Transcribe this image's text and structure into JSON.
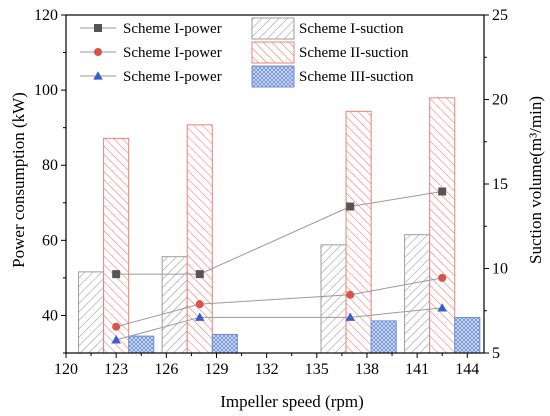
{
  "chart_data": {
    "type": "bar",
    "xlabel": "Impeller speed (rpm)",
    "ylabel_left": "Power consumption (kW)",
    "ylabel_right": "Suction volume(m³/min)",
    "xlim": [
      120,
      145
    ],
    "x_ticks": [
      120,
      123,
      126,
      129,
      132,
      135,
      138,
      141,
      144
    ],
    "ylim_left": [
      30,
      120
    ],
    "y_ticks_left": [
      40,
      60,
      80,
      100,
      120
    ],
    "ylim_right": [
      5,
      25
    ],
    "y_ticks_right": [
      5,
      10,
      15,
      20,
      25
    ],
    "grid": false,
    "legend_placement": "top",
    "power_series": [
      {
        "name": "Scheme I-power",
        "color": "#555555",
        "marker": "square",
        "x": [
          123,
          128,
          137,
          142.5
        ],
        "y": [
          51,
          51,
          69,
          73
        ]
      },
      {
        "name": "Scheme I-power",
        "color": "#d9534a",
        "marker": "circle",
        "x": [
          123,
          128,
          137,
          142.5
        ],
        "y": [
          37,
          43,
          45.5,
          50
        ]
      },
      {
        "name": "Scheme I-power",
        "color": "#3a5fcd",
        "marker": "triangle",
        "x": [
          123,
          128,
          137,
          142.5
        ],
        "y": [
          33.5,
          39.5,
          39.5,
          42
        ]
      }
    ],
    "suction_series": [
      {
        "name": "Scheme I-suction",
        "pattern": "gray-hatch",
        "color": "#9e9e9e",
        "x": [
          121.5,
          126.5,
          136,
          141
        ],
        "y": [
          9.8,
          10.7,
          11.4,
          12
        ]
      },
      {
        "name": "Scheme II-suction",
        "pattern": "red-hatch",
        "color": "#e8827a",
        "x": [
          123,
          128,
          137.5,
          142.5
        ],
        "y": [
          17.7,
          18.5,
          19.3,
          20.1
        ]
      },
      {
        "name": "Scheme III-suction",
        "pattern": "blue-crosshatch",
        "color": "#6f8fd8",
        "x": [
          124.5,
          129.5,
          139,
          144
        ],
        "y": [
          6,
          6.1,
          6.9,
          7.1
        ]
      }
    ],
    "bar_width_rpm": 1.5
  }
}
